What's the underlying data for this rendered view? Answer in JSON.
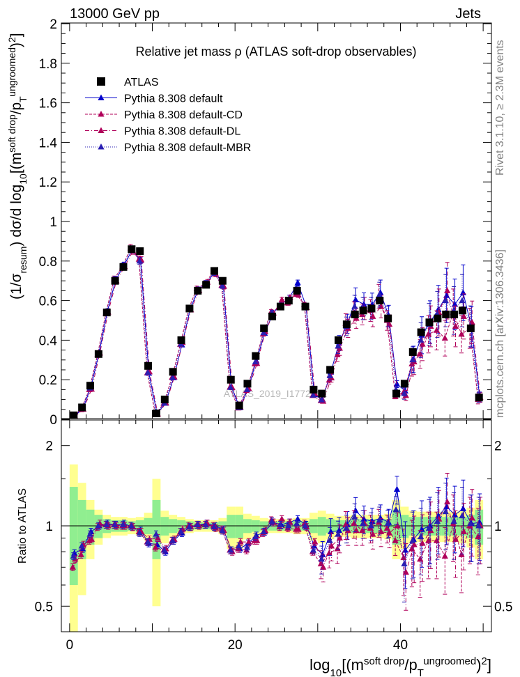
{
  "header": {
    "left": "13000 GeV pp",
    "right": "Jets"
  },
  "side": {
    "rivet": "Rivet 3.1.10,  ≥ 2.3M events",
    "mcplots": "mcplots.cern.ch [arXiv:1306.3436]"
  },
  "watermark": "ATLAS_2019_I1772062",
  "colors": {
    "data": "#000000",
    "default": "#0000cc",
    "cd": "#b0005a",
    "dl": "#b0005a",
    "mbr": "#2a1fb3",
    "band_inner": "#90ee90",
    "band_outer": "#ffff90"
  },
  "chart_data": [
    {
      "type": "scatter",
      "title": "Relative jet mass  ρ (ATLAS soft-drop observables)",
      "ylabel": "(1/σ_resum) dσ/d log_10[(m^soft drop/p_T^ungroomed)^2]",
      "xlabel": "",
      "xlim": [
        -1,
        51
      ],
      "ylim": [
        0,
        2.02
      ],
      "yticks": [
        "0",
        "0.2",
        "0.4",
        "0.6",
        "0.8",
        "1",
        "1.2",
        "1.4",
        "1.6",
        "1.8",
        "2"
      ],
      "legend": {
        "placement": "top-left",
        "entries": [
          "ATLAS",
          "Pythia 8.308 default",
          "Pythia 8.308 default-CD",
          "Pythia 8.308 default-DL",
          "Pythia 8.308 default-MBR"
        ]
      },
      "x": [
        0.5,
        1.5,
        2.5,
        3.5,
        4.5,
        5.5,
        6.5,
        7.5,
        8.5,
        9.5,
        10.5,
        11.5,
        12.5,
        13.5,
        14.5,
        15.5,
        16.5,
        17.5,
        18.5,
        19.5,
        20.5,
        21.5,
        22.5,
        23.5,
        24.5,
        25.5,
        26.5,
        27.5,
        28.5,
        29.5,
        30.5,
        31.5,
        32.5,
        33.5,
        34.5,
        35.5,
        36.5,
        37.5,
        38.5,
        39.5,
        40.5,
        41.5,
        42.5,
        43.5,
        44.5,
        45.5,
        46.5,
        47.5,
        48.5,
        49.5
      ],
      "series": [
        {
          "name": "ATLAS",
          "values": [
            0.02,
            0.06,
            0.17,
            0.33,
            0.54,
            0.7,
            0.77,
            0.86,
            0.85,
            0.27,
            0.03,
            0.1,
            0.24,
            0.4,
            0.56,
            0.65,
            0.68,
            0.75,
            0.7,
            0.2,
            0.07,
            0.18,
            0.32,
            0.46,
            0.52,
            0.57,
            0.6,
            0.65,
            0.57,
            0.15,
            0.13,
            0.25,
            0.4,
            0.48,
            0.53,
            0.55,
            0.56,
            0.6,
            0.51,
            0.13,
            0.18,
            0.34,
            0.44,
            0.49,
            0.51,
            0.53,
            0.53,
            0.55,
            0.46,
            0.11
          ]
        },
        {
          "name": "Pythia 8.308 default",
          "values": [
            0.017,
            0.051,
            0.163,
            0.338,
            0.548,
            0.705,
            0.779,
            0.857,
            0.804,
            0.233,
            0.029,
            0.081,
            0.21,
            0.376,
            0.558,
            0.656,
            0.687,
            0.749,
            0.676,
            0.162,
            0.058,
            0.154,
            0.295,
            0.435,
            0.535,
            0.58,
            0.615,
            0.69,
            0.574,
            0.125,
            0.1,
            0.238,
            0.385,
            0.483,
            0.604,
            0.581,
            0.58,
            0.64,
            0.524,
            0.178,
            0.143,
            0.303,
            0.425,
            0.491,
            0.555,
            0.626,
            0.581,
            0.64,
            0.467,
            0.113
          ]
        },
        {
          "name": "Pythia 8.308 default-CD",
          "values": [
            0.014,
            0.049,
            0.15,
            0.327,
            0.537,
            0.71,
            0.771,
            0.866,
            0.809,
            0.234,
            0.025,
            0.081,
            0.212,
            0.379,
            0.558,
            0.66,
            0.686,
            0.747,
            0.677,
            0.162,
            0.057,
            0.146,
            0.28,
            0.431,
            0.544,
            0.565,
            0.588,
            0.634,
            0.58,
            0.12,
            0.094,
            0.198,
            0.326,
            0.485,
            0.54,
            0.53,
            0.55,
            0.62,
            0.5,
            0.115,
            0.137,
            0.28,
            0.33,
            0.43,
            0.45,
            0.41,
            0.54,
            0.43,
            0.46,
            0.1
          ]
        },
        {
          "name": "Pythia 8.308 default-DL",
          "values": [
            0.015,
            0.051,
            0.152,
            0.335,
            0.542,
            0.7,
            0.772,
            0.851,
            0.806,
            0.24,
            0.027,
            0.082,
            0.214,
            0.388,
            0.553,
            0.651,
            0.693,
            0.735,
            0.672,
            0.16,
            0.061,
            0.156,
            0.282,
            0.443,
            0.537,
            0.604,
            0.615,
            0.629,
            0.565,
            0.13,
            0.091,
            0.209,
            0.359,
            0.46,
            0.51,
            0.56,
            0.52,
            0.57,
            0.48,
            0.13,
            0.12,
            0.29,
            0.38,
            0.47,
            0.54,
            0.65,
            0.47,
            0.52,
            0.49,
            0.11
          ]
        },
        {
          "name": "Pythia 8.308 default-MBR",
          "values": [
            0.016,
            0.053,
            0.158,
            0.331,
            0.545,
            0.708,
            0.775,
            0.86,
            0.8,
            0.236,
            0.028,
            0.081,
            0.211,
            0.38,
            0.555,
            0.655,
            0.688,
            0.742,
            0.675,
            0.161,
            0.059,
            0.15,
            0.29,
            0.438,
            0.54,
            0.575,
            0.6,
            0.66,
            0.57,
            0.122,
            0.098,
            0.22,
            0.37,
            0.47,
            0.57,
            0.56,
            0.56,
            0.63,
            0.52,
            0.15,
            0.13,
            0.3,
            0.4,
            0.48,
            0.53,
            0.6,
            0.55,
            0.6,
            0.47,
            0.11
          ]
        }
      ]
    },
    {
      "type": "scatter",
      "title": "",
      "ylabel": "Ratio to ATLAS",
      "xlabel": "log_10[(m^soft drop/p_T^ungroomed)^2]",
      "xlim": [
        -1,
        51
      ],
      "ylim": [
        0.33,
        2.25
      ],
      "yticks": [
        "0.5",
        "1",
        "2"
      ],
      "xticks": [
        "0",
        "20",
        "40"
      ],
      "reference": 1,
      "band_inner": [
        0.4,
        0.25,
        0.15,
        0.1,
        0.06,
        0.05,
        0.05,
        0.04,
        0.05,
        0.07,
        0.25,
        0.08,
        0.06,
        0.05,
        0.04,
        0.03,
        0.03,
        0.03,
        0.04,
        0.1,
        0.1,
        0.06,
        0.05,
        0.04,
        0.04,
        0.04,
        0.04,
        0.04,
        0.04,
        0.06,
        0.08,
        0.06,
        0.05,
        0.05,
        0.06,
        0.06,
        0.06,
        0.06,
        0.06,
        0.15,
        0.1,
        0.08,
        0.08,
        0.08,
        0.08,
        0.08,
        0.08,
        0.08,
        0.1,
        0.15
      ],
      "band_outer": [
        0.7,
        0.45,
        0.25,
        0.15,
        0.1,
        0.08,
        0.08,
        0.07,
        0.08,
        0.12,
        0.5,
        0.14,
        0.1,
        0.08,
        0.06,
        0.05,
        0.05,
        0.05,
        0.07,
        0.18,
        0.18,
        0.11,
        0.09,
        0.07,
        0.06,
        0.06,
        0.06,
        0.07,
        0.07,
        0.12,
        0.14,
        0.11,
        0.09,
        0.09,
        0.1,
        0.1,
        0.1,
        0.1,
        0.11,
        0.25,
        0.18,
        0.14,
        0.13,
        0.13,
        0.13,
        0.13,
        0.13,
        0.14,
        0.17,
        0.25
      ],
      "series": [
        {
          "name": "Pythia 8.308 default",
          "values": [
            0.79,
            0.82,
            0.95,
            1.0,
            1.02,
            1.01,
            1.02,
            0.99,
            0.96,
            0.86,
            0.85,
            0.8,
            0.88,
            0.94,
            0.99,
            1.01,
            1.02,
            1.0,
            0.97,
            0.81,
            0.82,
            0.86,
            0.92,
            0.95,
            1.03,
            1.01,
            1.03,
            1.06,
            1.01,
            0.84,
            0.78,
            0.95,
            0.96,
            1.01,
            1.14,
            1.06,
            1.04,
            1.07,
            1.03,
            1.37,
            0.81,
            0.89,
            0.97,
            1.0,
            1.09,
            1.18,
            1.1,
            1.16,
            1.02,
            1.03
          ]
        },
        {
          "name": "Pythia 8.308 default-CD",
          "values": [
            0.7,
            0.78,
            0.88,
            0.99,
            1.01,
            1.01,
            1.0,
            1.0,
            0.95,
            0.87,
            0.83,
            0.81,
            0.88,
            0.95,
            1.0,
            1.01,
            1.01,
            1.0,
            0.97,
            0.81,
            0.82,
            0.81,
            0.88,
            0.94,
            1.05,
            0.99,
            0.98,
            0.97,
            1.02,
            0.8,
            0.72,
            0.79,
            0.82,
            1.01,
            1.02,
            0.96,
            0.98,
            1.03,
            0.98,
            0.88,
            0.76,
            0.82,
            0.75,
            0.88,
            0.88,
            0.77,
            1.02,
            0.78,
            1.0,
            0.91
          ]
        },
        {
          "name": "Pythia 8.308 default-DL",
          "values": [
            0.75,
            0.85,
            0.89,
            1.02,
            1.0,
            1.0,
            1.0,
            0.99,
            0.95,
            0.89,
            0.9,
            0.82,
            0.89,
            0.97,
            0.99,
            1.0,
            1.02,
            0.98,
            0.96,
            0.8,
            0.87,
            0.87,
            0.88,
            0.96,
            1.03,
            1.06,
            1.03,
            0.97,
            0.99,
            0.87,
            0.7,
            0.84,
            0.9,
            0.96,
            0.96,
            1.02,
            0.93,
            0.95,
            0.94,
            1.0,
            0.67,
            0.85,
            0.86,
            0.96,
            1.06,
            1.23,
            0.89,
            0.95,
            1.07,
            1.0
          ]
        },
        {
          "name": "Pythia 8.308 default-MBR",
          "values": [
            0.77,
            0.84,
            0.93,
            1.0,
            1.01,
            1.01,
            1.01,
            1.0,
            0.94,
            0.87,
            0.93,
            0.81,
            0.88,
            0.95,
            0.99,
            1.01,
            1.01,
            0.99,
            0.96,
            0.81,
            0.84,
            0.83,
            0.91,
            0.95,
            1.04,
            1.01,
            1.0,
            1.02,
            1.0,
            0.81,
            0.75,
            0.88,
            0.93,
            0.98,
            1.08,
            1.02,
            1.0,
            1.05,
            1.02,
            1.15,
            0.72,
            0.88,
            0.91,
            0.98,
            1.04,
            1.13,
            1.04,
            1.09,
            1.02,
            1.0
          ]
        }
      ]
    }
  ]
}
